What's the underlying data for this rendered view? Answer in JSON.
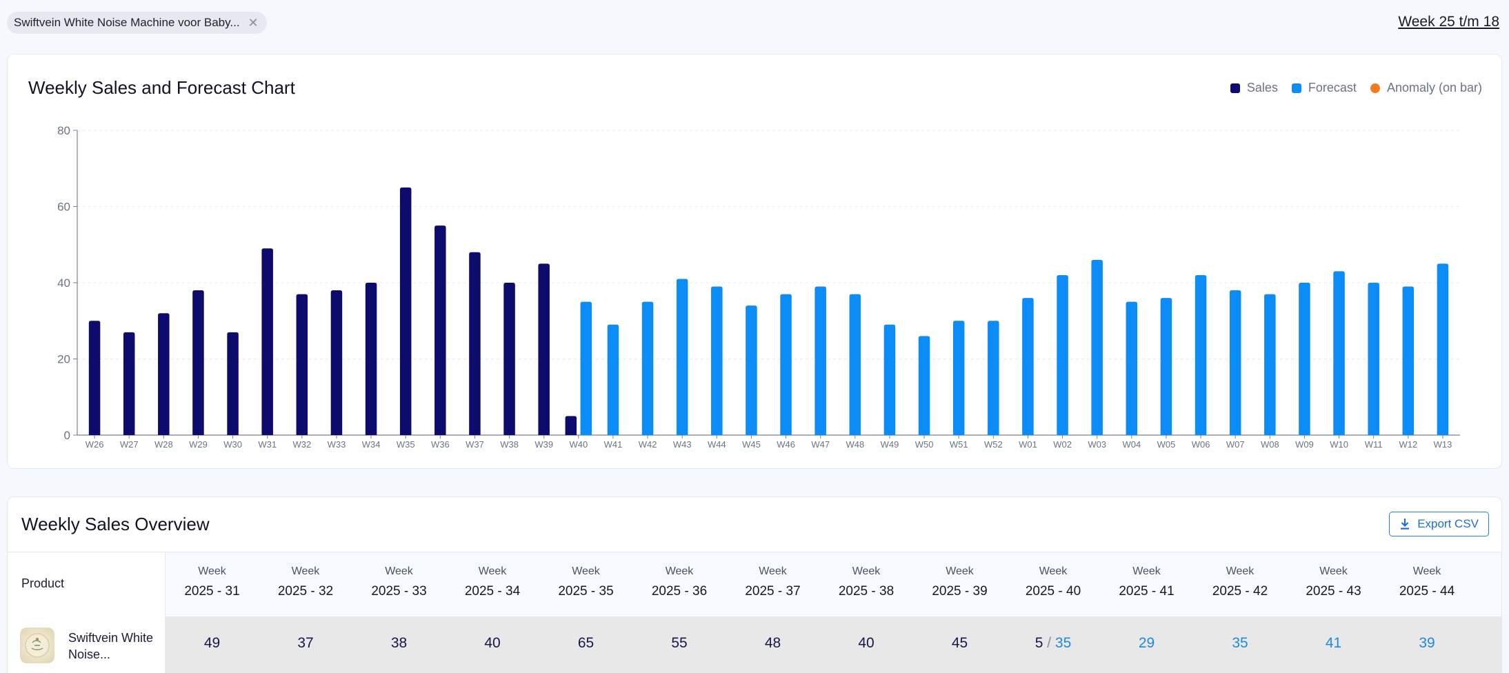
{
  "filter_chip": {
    "label": "Swiftvein White Noise Machine voor Baby..."
  },
  "week_range": "Week 25 t/m 18",
  "chart_card": {
    "title": "Weekly Sales and Forecast Chart",
    "legend": [
      {
        "label": "Sales",
        "color": "#0d0b6b",
        "shape": "square"
      },
      {
        "label": "Forecast",
        "color": "#0b8cf7",
        "shape": "square"
      },
      {
        "label": "Anomaly (on bar)",
        "color": "#f07c1b",
        "shape": "dot"
      }
    ]
  },
  "chart_data": {
    "type": "bar",
    "title": "Weekly Sales and Forecast Chart",
    "ylim": [
      0,
      80
    ],
    "yticks": [
      0,
      20,
      40,
      60,
      80
    ],
    "grid": true,
    "legend_position": "top-right",
    "categories": [
      "W26",
      "W27",
      "W28",
      "W29",
      "W30",
      "W31",
      "W32",
      "W33",
      "W34",
      "W35",
      "W36",
      "W37",
      "W38",
      "W39",
      "W40",
      "W41",
      "W42",
      "W43",
      "W44",
      "W45",
      "W46",
      "W47",
      "W48",
      "W49",
      "W50",
      "W51",
      "W52",
      "W01",
      "W02",
      "W03",
      "W04",
      "W05",
      "W06",
      "W07",
      "W08",
      "W09",
      "W10",
      "W11",
      "W12",
      "W13"
    ],
    "series": [
      {
        "name": "Sales",
        "color": "#0d0b6b",
        "values": [
          30,
          27,
          32,
          38,
          27,
          49,
          37,
          38,
          40,
          65,
          55,
          48,
          40,
          45,
          5,
          null,
          null,
          null,
          null,
          null,
          null,
          null,
          null,
          null,
          null,
          null,
          null,
          null,
          null,
          null,
          null,
          null,
          null,
          null,
          null,
          null,
          null,
          null,
          null,
          null
        ]
      },
      {
        "name": "Forecast",
        "color": "#0b8cf7",
        "values": [
          null,
          null,
          null,
          null,
          null,
          null,
          null,
          null,
          null,
          null,
          null,
          null,
          null,
          null,
          35,
          29,
          35,
          41,
          39,
          34,
          37,
          39,
          37,
          29,
          26,
          30,
          30,
          36,
          42,
          46,
          35,
          36,
          42,
          38,
          37,
          40,
          43,
          40,
          39,
          45
        ]
      }
    ]
  },
  "table_card": {
    "title": "Weekly Sales Overview",
    "export_label": "Export CSV",
    "product_header": "Product",
    "week_label": "Week",
    "weeks": [
      "2025 - 31",
      "2025 - 32",
      "2025 - 33",
      "2025 - 34",
      "2025 - 35",
      "2025 - 36",
      "2025 - 37",
      "2025 - 38",
      "2025 - 39",
      "2025 - 40",
      "2025 - 41",
      "2025 - 42",
      "2025 - 43",
      "2025 - 44"
    ],
    "row": {
      "product_name": "Swiftvein White Noise...",
      "cells": [
        {
          "sales": "49"
        },
        {
          "sales": "37"
        },
        {
          "sales": "38"
        },
        {
          "sales": "40"
        },
        {
          "sales": "65"
        },
        {
          "sales": "55"
        },
        {
          "sales": "48"
        },
        {
          "sales": "40"
        },
        {
          "sales": "45"
        },
        {
          "sales": "5",
          "forecast": "35"
        },
        {
          "forecast": "29"
        },
        {
          "forecast": "35"
        },
        {
          "forecast": "41"
        },
        {
          "forecast": "39"
        }
      ]
    }
  }
}
